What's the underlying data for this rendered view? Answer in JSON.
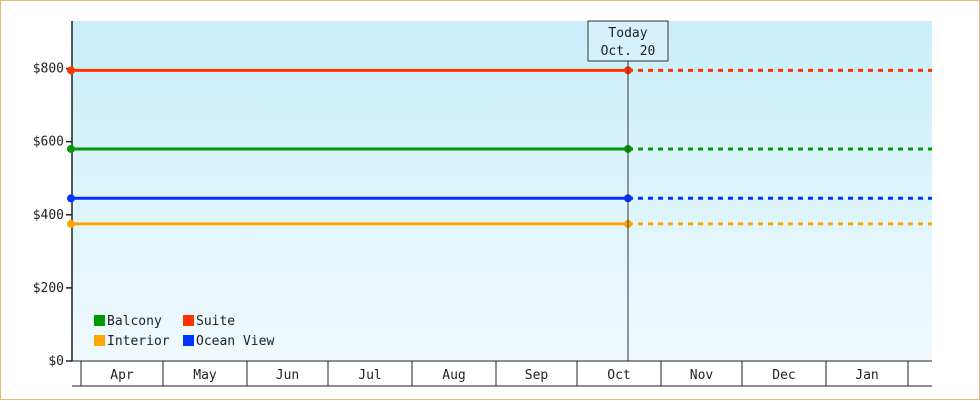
{
  "chart_data": {
    "type": "line",
    "y_ticks": [
      "$0",
      "$200",
      "$400",
      "$600",
      "$800"
    ],
    "y_tick_values": [
      0,
      200,
      400,
      600,
      800
    ],
    "ylim": [
      0,
      930
    ],
    "months": [
      "Apr",
      "May",
      "Jun",
      "Jul",
      "Aug",
      "Sep",
      "Oct",
      "Nov",
      "Dec",
      "Jan"
    ],
    "today_marker": {
      "line1": "Today",
      "line2": "Oct. 20"
    },
    "series": [
      {
        "name": "Suite",
        "color": "#ff3300",
        "value": 795
      },
      {
        "name": "Balcony",
        "color": "#009900",
        "value": 580
      },
      {
        "name": "Ocean View",
        "color": "#0033ff",
        "value": 445
      },
      {
        "name": "Interior",
        "color": "#ffa500",
        "value": 375
      }
    ],
    "legend": {
      "placement": "bottom-left",
      "items": [
        {
          "name": "Balcony",
          "color": "#009900"
        },
        {
          "name": "Suite",
          "color": "#ff3300"
        },
        {
          "name": "Interior",
          "color": "#ffa500"
        },
        {
          "name": "Ocean View",
          "color": "#0033ff"
        }
      ]
    },
    "grid": false
  }
}
